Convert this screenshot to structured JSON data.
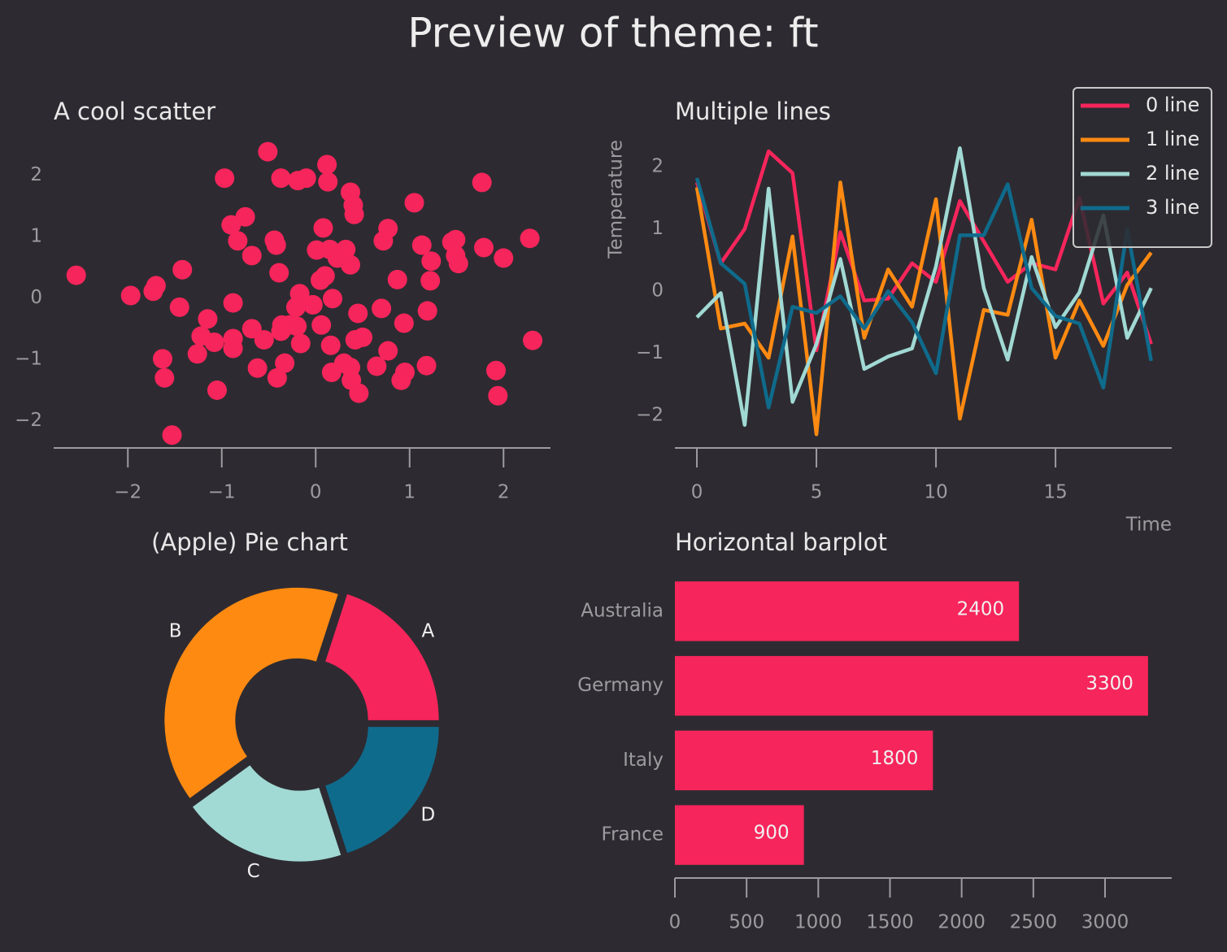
{
  "title": "Preview of theme: ft",
  "chart_data": [
    {
      "type": "scatter",
      "title": "A cool scatter",
      "color": "#f6255b",
      "x": [
        -2.55,
        -1.97,
        -1.73,
        -1.7,
        -1.42,
        -1.45,
        -1.63,
        -1.61,
        -1.53,
        -1.15,
        -1.22,
        -1.26,
        -1.08,
        -1.05,
        -0.97,
        -0.9,
        -0.83,
        -0.75,
        -0.88,
        -0.88,
        -0.88,
        -0.68,
        -0.68,
        -0.62,
        -0.55,
        -0.51,
        -0.44,
        -0.42,
        -0.39,
        -0.37,
        -0.37,
        -0.36,
        -0.41,
        -0.33,
        -0.28,
        -0.2,
        -0.19,
        -0.1,
        -0.16,
        -0.17,
        -0.21,
        -0.03,
        0.01,
        0.05,
        0.08,
        0.12,
        0.13,
        0.06,
        0.1,
        0.15,
        0.16,
        0.17,
        0.18,
        0.23,
        0.32,
        0.37,
        0.37,
        0.4,
        0.41,
        0.37,
        0.38,
        0.42,
        0.45,
        0.46,
        0.3,
        0.5,
        0.65,
        0.7,
        0.72,
        0.77,
        0.77,
        0.87,
        0.91,
        0.95,
        0.94,
        1.05,
        1.13,
        1.18,
        1.19,
        1.23,
        1.22,
        1.45,
        1.49,
        1.49,
        1.52,
        1.77,
        1.79,
        1.92,
        1.94,
        2.0,
        2.28,
        2.31
      ],
      "values": [
        0.37,
        0.04,
        0.11,
        0.2,
        0.46,
        -0.15,
        -0.99,
        -1.3,
        -2.23,
        -0.34,
        -0.62,
        -0.91,
        -0.72,
        -1.5,
        1.95,
        1.19,
        0.93,
        1.32,
        -0.08,
        -0.66,
        -0.82,
        0.69,
        -0.5,
        -1.14,
        -0.68,
        2.38,
        0.94,
        0.86,
        0.41,
        1.95,
        -0.54,
        -0.44,
        -1.3,
        -1.06,
        -0.44,
        -0.46,
        1.91,
        1.95,
        -0.74,
        0.07,
        -0.15,
        -0.11,
        0.78,
        0.29,
        1.14,
        2.17,
        1.89,
        -0.44,
        0.36,
        0.79,
        -0.77,
        -1.21,
        -0.01,
        0.65,
        0.79,
        0.54,
        1.72,
        1.51,
        1.36,
        -1.13,
        -1.34,
        -0.68,
        -0.25,
        -1.55,
        -1.06,
        -0.64,
        -1.11,
        -0.17,
        0.93,
        1.13,
        -0.86,
        0.3,
        -1.34,
        -1.21,
        -0.41,
        1.55,
        0.86,
        -1.1,
        -0.21,
        0.6,
        0.28,
        0.91,
        0.95,
        0.69,
        0.56,
        1.88,
        0.82,
        -1.18,
        -1.59,
        0.65,
        0.97,
        -0.69
      ],
      "xlim": [
        -2.79,
        2.5
      ],
      "ylim": [
        -2.44,
        2.6
      ],
      "xticks": [
        {
          "value": -2,
          "label": "−2"
        },
        {
          "value": -1,
          "label": "−1"
        },
        0,
        1,
        2
      ],
      "yticks": [
        {
          "value": -2,
          "label": "−2"
        },
        {
          "value": -1,
          "label": "−1"
        },
        0,
        1,
        2
      ]
    },
    {
      "type": "line",
      "title": "Multiple lines",
      "xlabel": "Time",
      "ylabel": "Temperature",
      "legend": "upper right",
      "x": [
        0,
        1,
        2,
        3,
        4,
        5,
        6,
        7,
        8,
        9,
        10,
        11,
        12,
        13,
        14,
        15,
        16,
        17,
        18,
        19
      ],
      "series": [
        {
          "name": "0 line",
          "color": "#f6255b",
          "values": [
            1.75,
            0.45,
            1.0,
            2.25,
            1.9,
            -0.95,
            0.95,
            -0.15,
            -0.12,
            0.45,
            0.15,
            1.45,
            0.8,
            0.15,
            0.45,
            0.35,
            1.5,
            -0.2,
            0.3,
            -0.85
          ]
        },
        {
          "name": "1 line",
          "color": "#fe8a12",
          "values": [
            1.67,
            -0.6,
            -0.52,
            -1.07,
            0.88,
            -2.3,
            1.75,
            -0.75,
            0.35,
            -0.25,
            1.48,
            -2.05,
            -0.3,
            -0.38,
            1.15,
            -1.07,
            -0.15,
            -0.88,
            0.1,
            0.62
          ]
        },
        {
          "name": "2 line",
          "color": "#a1d9d4",
          "values": [
            -0.42,
            -0.03,
            -2.15,
            1.65,
            -1.78,
            -0.85,
            0.52,
            -1.25,
            -1.05,
            -0.92,
            0.4,
            2.3,
            0.05,
            -1.1,
            0.55,
            -0.58,
            -0.02,
            1.22,
            -0.75,
            0.05
          ]
        },
        {
          "name": "3 line",
          "color": "#0f6b8c",
          "values": [
            1.82,
            0.45,
            0.12,
            -1.87,
            -0.25,
            -0.35,
            -0.08,
            -0.6,
            0.0,
            -0.5,
            -1.32,
            0.9,
            0.9,
            1.72,
            0.05,
            -0.4,
            -0.52,
            -1.55,
            1.0,
            -1.12
          ]
        }
      ],
      "xlim": [
        -0.92,
        19.86
      ],
      "ylim": [
        -2.52,
        2.46
      ],
      "xticks": [
        0,
        5,
        10,
        15
      ],
      "yticks": [
        {
          "value": -2,
          "label": "−2"
        },
        {
          "value": -1,
          "label": "−1"
        },
        0,
        1,
        2
      ]
    },
    {
      "type": "pie",
      "title": "(Apple) Pie chart",
      "categories": [
        "A",
        "B",
        "C",
        "D"
      ],
      "values": [
        20,
        40,
        20,
        20
      ],
      "colors": [
        "#f6255b",
        "#fe8a12",
        "#a1d9d4",
        "#0f6b8c"
      ]
    },
    {
      "type": "barh",
      "title": "Horizontal barplot",
      "color": "#f6255b",
      "categories": [
        "Australia",
        "Germany",
        "Italy",
        "France"
      ],
      "values": [
        2400,
        3300,
        1800,
        900
      ],
      "xlim": [
        0,
        3465
      ],
      "xticks": [
        0,
        500,
        1000,
        1500,
        2000,
        2500,
        3000
      ]
    }
  ]
}
